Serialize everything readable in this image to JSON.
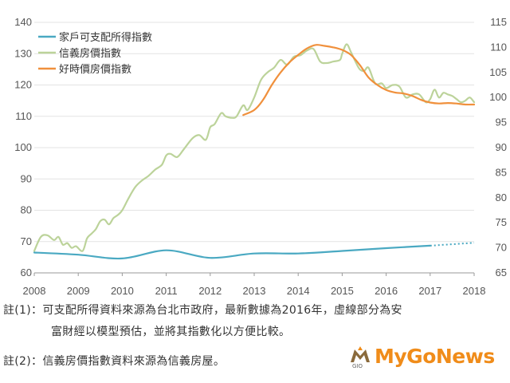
{
  "chart_data": {
    "type": "line",
    "x_ticks": [
      "2008",
      "2009",
      "2010",
      "2011",
      "2012",
      "2013",
      "2014",
      "2015",
      "2016",
      "2017",
      "2018"
    ],
    "y_left_ticks": [
      "60",
      "70",
      "80",
      "90",
      "100",
      "110",
      "120",
      "130",
      "140"
    ],
    "y_right_ticks": [
      "65",
      "70",
      "75",
      "80",
      "85",
      "90",
      "95",
      "100",
      "105",
      "110",
      "115"
    ],
    "ylim_left": [
      60,
      140
    ],
    "ylim_right": [
      65,
      115
    ],
    "xlim": [
      2008,
      2018
    ],
    "legend_position": "top-left",
    "grid": "horizontal",
    "series": [
      {
        "name": "家戶可支配所得指數",
        "axis": "left",
        "color": "#4aa9c2",
        "x": [
          2008.0,
          2009.0,
          2010.0,
          2011.0,
          2012.0,
          2013.0,
          2014.0,
          2015.0,
          2016.0,
          2017.0
        ],
        "y": [
          66.5,
          65.8,
          64.6,
          67.2,
          64.8,
          66.2,
          66.2,
          67.0,
          67.9,
          68.7
        ],
        "projection": {
          "x": [
            2017.0,
            2018.0
          ],
          "y": [
            68.7,
            69.6
          ]
        }
      },
      {
        "name": "信義房價指數",
        "axis": "left",
        "color": "#bcd39a",
        "x": [
          2008.0,
          2008.15,
          2008.3,
          2008.45,
          2008.55,
          2008.65,
          2008.75,
          2008.85,
          2008.95,
          2009.1,
          2009.2,
          2009.3,
          2009.4,
          2009.5,
          2009.6,
          2009.7,
          2009.8,
          2009.9,
          2010.0,
          2010.15,
          2010.3,
          2010.45,
          2010.6,
          2010.75,
          2010.9,
          2011.0,
          2011.1,
          2011.25,
          2011.4,
          2011.6,
          2011.75,
          2011.9,
          2012.0,
          2012.1,
          2012.25,
          2012.35,
          2012.5,
          2012.6,
          2012.75,
          2012.85,
          2013.0,
          2013.15,
          2013.3,
          2013.45,
          2013.6,
          2013.75,
          2013.9,
          2014.05,
          2014.2,
          2014.35,
          2014.5,
          2014.65,
          2014.8,
          2014.95,
          2015.0,
          2015.1,
          2015.2,
          2015.3,
          2015.4,
          2015.5,
          2015.6,
          2015.75,
          2015.9,
          2016.0,
          2016.15,
          2016.3,
          2016.45,
          2016.6,
          2016.75,
          2016.9,
          2017.0,
          2017.1,
          2017.2,
          2017.3,
          2017.4,
          2017.5,
          2017.6,
          2017.7,
          2017.8,
          2017.9,
          2018.0
        ],
        "y": [
          67.0,
          71.5,
          72.0,
          70.5,
          71.5,
          69.0,
          69.5,
          68.0,
          68.5,
          67.0,
          71.0,
          72.5,
          74.0,
          76.5,
          77.0,
          75.5,
          77.5,
          78.5,
          80.0,
          84.0,
          87.5,
          89.5,
          91.0,
          93.0,
          94.5,
          97.5,
          98.0,
          97.0,
          99.5,
          103.0,
          104.0,
          102.5,
          106.5,
          107.5,
          111.0,
          110.0,
          109.5,
          110.0,
          113.5,
          112.0,
          116.0,
          121.5,
          124.0,
          125.5,
          128.0,
          126.5,
          129.0,
          129.5,
          131.0,
          131.5,
          127.5,
          127.0,
          127.5,
          128.0,
          130.0,
          133.0,
          130.5,
          127.5,
          125.0,
          124.5,
          125.5,
          120.5,
          120.5,
          119.0,
          120.0,
          119.5,
          116.0,
          117.0,
          117.0,
          114.5,
          115.5,
          118.5,
          116.0,
          117.5,
          117.0,
          116.5,
          115.5,
          114.5,
          115.0,
          116.0,
          114.5
        ]
      },
      {
        "name": "好時價房價指數",
        "axis": "right",
        "color": "#f0903c",
        "x": [
          2012.75,
          2013.0,
          2013.2,
          2013.4,
          2013.6,
          2013.8,
          2014.0,
          2014.2,
          2014.4,
          2014.6,
          2014.8,
          2015.0,
          2015.2,
          2015.4,
          2015.6,
          2015.8,
          2016.0,
          2016.2,
          2016.4,
          2016.6,
          2016.8,
          2017.0,
          2017.2,
          2017.4,
          2017.6,
          2017.8,
          2018.0
        ],
        "y": [
          96.5,
          97.5,
          99.5,
          102.5,
          105.0,
          107.0,
          108.5,
          109.8,
          110.5,
          110.3,
          110.0,
          109.5,
          108.5,
          106.5,
          104.0,
          102.5,
          101.5,
          101.0,
          100.8,
          100.3,
          99.5,
          99.0,
          98.8,
          98.9,
          98.8,
          98.6,
          98.6
        ]
      }
    ],
    "notes": [
      "註(1)：可支配所得資料來源為台北市政府，最新數據為2016年，虛線部分為安",
      "富財經以模型預估，並將其指數化以方便比較。",
      "註(2)：信義房價指數資料來源為信義房屋。"
    ]
  },
  "logo": {
    "text": "MyGoNews",
    "tag": "GIO"
  }
}
